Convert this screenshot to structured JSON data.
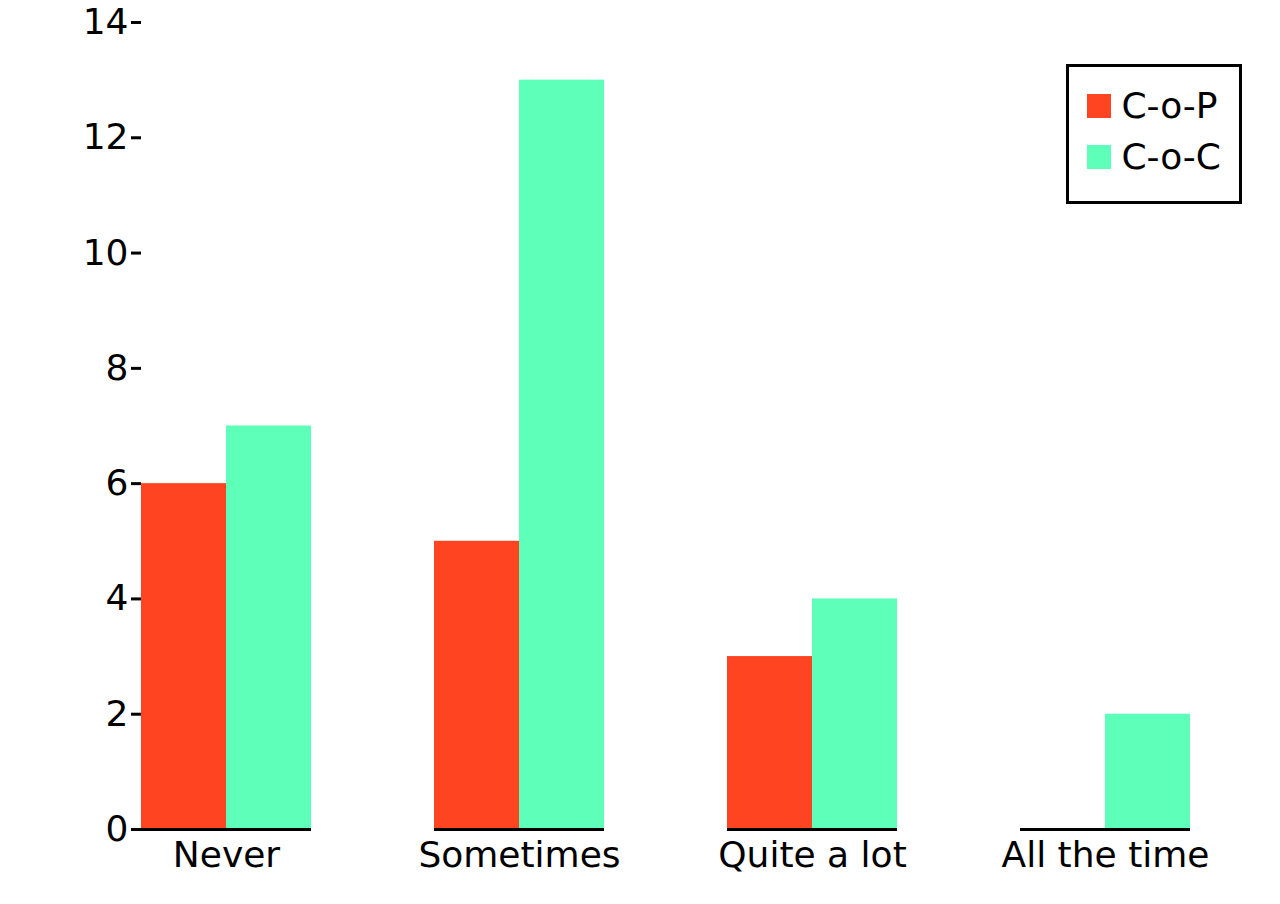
{
  "chart_data": {
    "type": "bar",
    "categories": [
      "Never",
      "Sometimes",
      "Quite a lot",
      "All the time"
    ],
    "series": [
      {
        "name": "C-o-P",
        "color": "#ff4422",
        "values": [
          6,
          5,
          3,
          0
        ]
      },
      {
        "name": "C-o-C",
        "color": "#5dffb9",
        "values": [
          7,
          13,
          4,
          2
        ]
      }
    ],
    "ylim": [
      0,
      14
    ],
    "yticks": [
      0,
      2,
      4,
      6,
      8,
      10,
      12,
      14
    ],
    "grid": false,
    "legend": "top-right"
  }
}
